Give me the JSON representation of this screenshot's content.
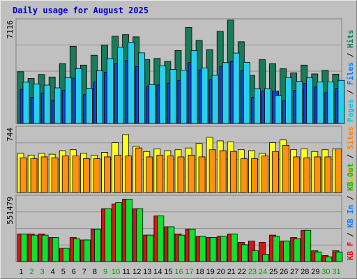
{
  "chart_data": {
    "type": "bar",
    "title": "Daily usage for August 2025",
    "categories": [
      "1",
      "2",
      "3",
      "4",
      "5",
      "6",
      "7",
      "8",
      "9",
      "10",
      "11",
      "12",
      "13",
      "14",
      "15",
      "16",
      "17",
      "18",
      "19",
      "20",
      "21",
      "22",
      "23",
      "24",
      "25",
      "26",
      "27",
      "28",
      "29",
      "30",
      "31"
    ],
    "weekend_days": [
      "2",
      "3",
      "9",
      "10",
      "16",
      "17",
      "23",
      "24",
      "30",
      "31"
    ],
    "panels": [
      {
        "id": "top",
        "max_label": "7116",
        "ymax": 7116,
        "legend": [
          "Pages",
          "Files",
          "Hits"
        ],
        "legend_colors": [
          "#00c8e8",
          "#0080ff",
          "#00805a"
        ],
        "series": [
          {
            "name": "Hits",
            "color": "#1a7a5a",
            "values": [
              3520,
              3060,
              3330,
              3160,
              4070,
              5250,
              3970,
              4640,
              5340,
              5930,
              6040,
              5890,
              4340,
              4420,
              4220,
              4960,
              6530,
              5650,
              5020,
              6260,
              7030,
              5560,
              3270,
              4340,
              4070,
              3720,
              3440,
              3970,
              3370,
              3610,
              3350
            ]
          },
          {
            "name": "Files",
            "color": "#1840d0",
            "values": [
              2320,
              1780,
              2070,
              1560,
              2250,
              3080,
              1950,
              2820,
              3490,
              4080,
              4290,
              3870,
              2510,
              2620,
              2740,
              2930,
              4150,
              3640,
              2980,
              3880,
              4210,
              3580,
              1780,
              2200,
              2200,
              1530,
              2250,
              2730,
              2470,
              2090,
              2400
            ]
          },
          {
            "name": "Pages",
            "color": "#28d0f0",
            "values": [
              2810,
              2690,
              2610,
              2420,
              3110,
              3720,
              2390,
              3580,
              4410,
              5180,
              5530,
              4800,
              2640,
              3910,
              3680,
              3630,
              4950,
              3780,
              3280,
              4140,
              4790,
              4160,
              2370,
              2370,
              1900,
              3120,
              2860,
              3110,
              2820,
              2820,
              2930
            ]
          }
        ]
      },
      {
        "id": "middle",
        "max_label": "744",
        "ymax": 744,
        "legend": [
          "Visits",
          "Sites"
        ],
        "legend_colors": [
          "#e8c000",
          "#ff8000"
        ],
        "series": [
          {
            "name": "Visits",
            "color": "#ffff20",
            "values": [
              440,
              420,
              440,
              430,
              470,
              480,
              440,
              420,
              450,
              560,
              650,
              520,
              460,
              490,
              470,
              480,
              500,
              550,
              620,
              580,
              570,
              480,
              470,
              440,
              560,
              590,
              480,
              490,
              460,
              480,
              490
            ]
          },
          {
            "name": "Sites",
            "color": "#ff9010",
            "values": [
              390,
              380,
              400,
              390,
              410,
              410,
              380,
              380,
              400,
              420,
              410,
              500,
              400,
              420,
              410,
              400,
              420,
              400,
              480,
              470,
              460,
              380,
              380,
              410,
              460,
              530,
              400,
              390,
              400,
              400,
              490
            ]
          }
        ]
      },
      {
        "id": "bottom",
        "max_label": "551479",
        "ymax": 551479,
        "legend": [
          "KB F",
          "KB In",
          "KB Out"
        ],
        "legend_colors": [
          "#ff0000",
          "#0080ff",
          "#00c000"
        ],
        "series": [
          {
            "name": "KB F",
            "color": "#d01818",
            "values": [
              230000,
              230000,
              230000,
              200000,
              110000,
              200000,
              180000,
              270000,
              440000,
              480000,
              520000,
              440000,
              220000,
              380000,
              290000,
              230000,
              270000,
              210000,
              200000,
              210000,
              230000,
              160000,
              170000,
              160000,
              220000,
              170000,
              200000,
              260000,
              90000,
              50000,
              90000
            ]
          },
          {
            "name": "KB Out",
            "color": "#10e030",
            "values": [
              230000,
              220000,
              220000,
              200000,
              110000,
              190000,
              180000,
              270000,
              440000,
              490000,
              520000,
              440000,
              220000,
              380000,
              290000,
              220000,
              270000,
              210000,
              200000,
              210000,
              230000,
              140000,
              90000,
              60000,
              210000,
              170000,
              190000,
              260000,
              80000,
              40000,
              80000
            ]
          }
        ]
      }
    ]
  }
}
